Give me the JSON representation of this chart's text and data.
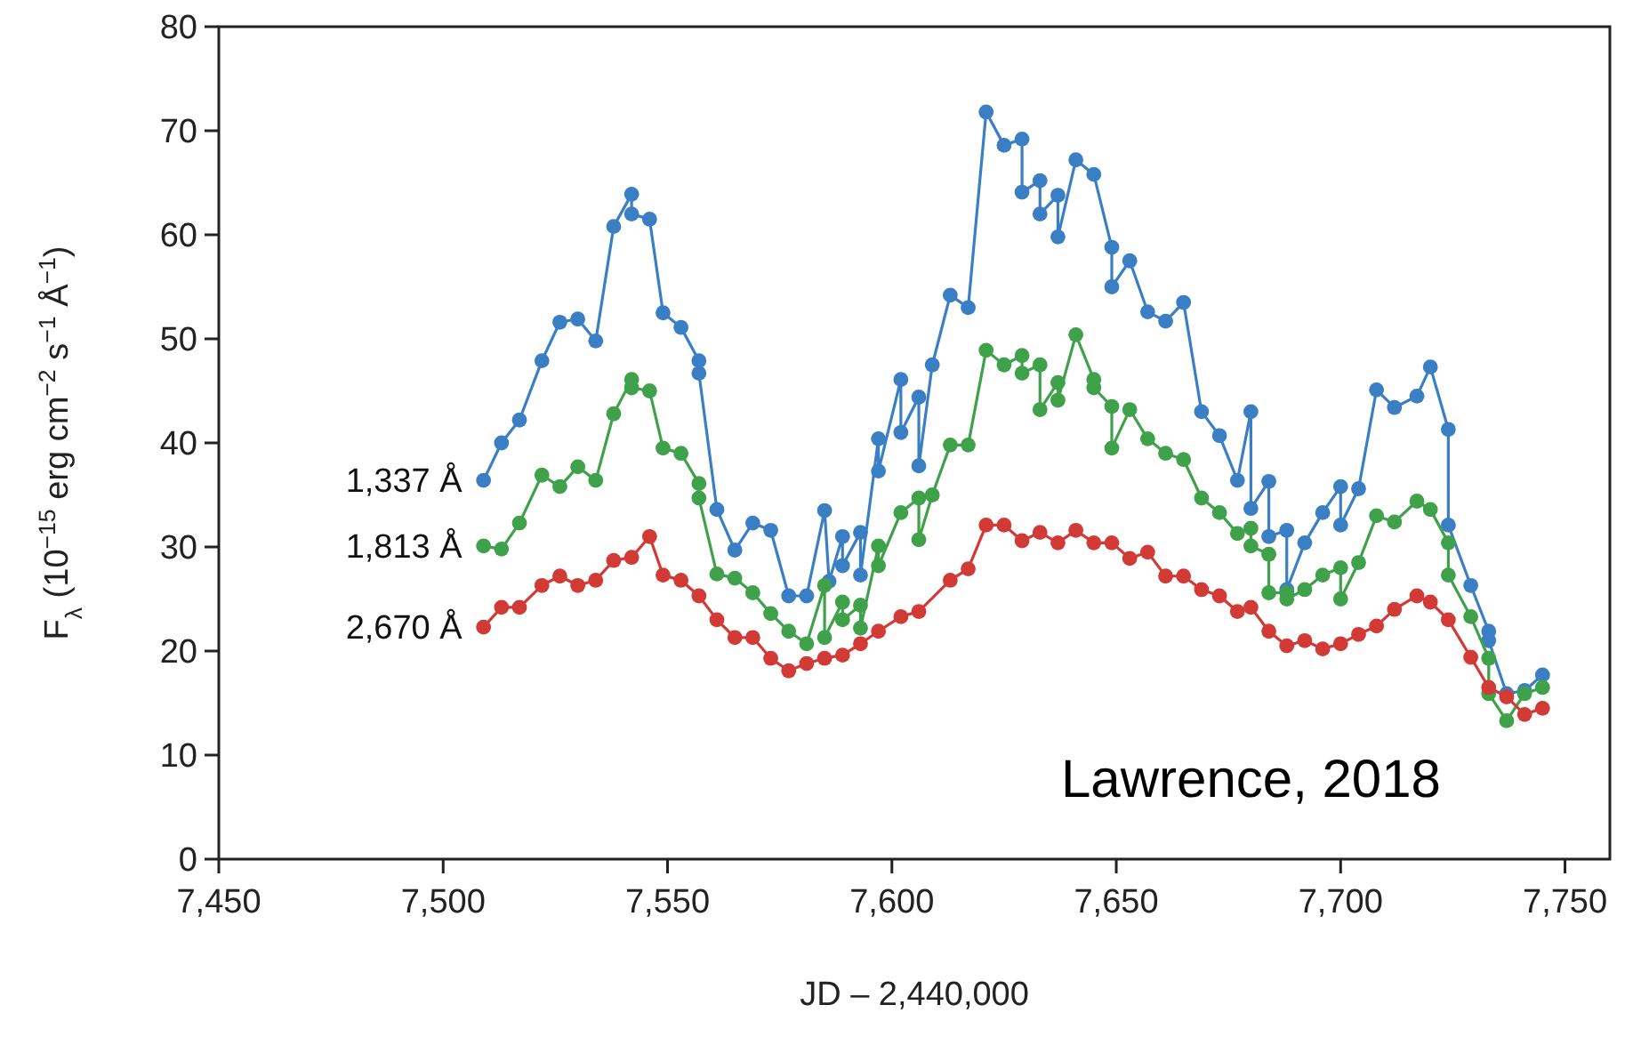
{
  "chart_data": {
    "type": "line",
    "xlabel": "JD – 2,440,000",
    "ylabel": "F$_{λ}$ (10$^{−15}$ erg cm$^{−2}$ s$^{−1}$ Å$^{−1}$)",
    "xlim": [
      7450,
      7760
    ],
    "xticks": [
      {
        "value": 7450,
        "label": "7,450"
      },
      {
        "value": 7500,
        "label": "7,500"
      },
      {
        "value": 7550,
        "label": "7,550"
      },
      {
        "value": 7600,
        "label": "7,600"
      },
      {
        "value": 7650,
        "label": "7,650"
      },
      {
        "value": 7700,
        "label": "7,700"
      },
      {
        "value": 7750,
        "label": "7,750"
      }
    ],
    "ylim": [
      0,
      80
    ],
    "yticks": [
      0,
      10,
      20,
      30,
      40,
      50,
      60,
      70,
      80
    ],
    "marker": "circle",
    "line_style": "solid",
    "grid": false,
    "annotations": [
      "Lawrence, 2018"
    ],
    "series": [
      {
        "name": "1,337 Å",
        "color": "#3a7fc4",
        "x": [
          7509,
          7513,
          7517,
          7522,
          7526,
          7530,
          7534,
          7538,
          7542,
          7542,
          7546,
          7549,
          7553,
          7557,
          7557,
          7561,
          7565,
          7569,
          7573,
          7577,
          7581,
          7585,
          7586,
          7589,
          7589,
          7593,
          7593,
          7597,
          7597,
          7602,
          7602,
          7606,
          7606,
          7609,
          7613,
          7617,
          7621,
          7625,
          7629,
          7629,
          7633,
          7633,
          7637,
          7637,
          7641,
          7645,
          7649,
          7649,
          7653,
          7657,
          7661,
          7665,
          7669,
          7673,
          7677,
          7680,
          7680,
          7684,
          7684,
          7688,
          7688,
          7692,
          7696,
          7700,
          7700,
          7704,
          7708,
          7712,
          7717,
          7720,
          7724,
          7724,
          7729,
          7733,
          7733,
          7737,
          7741,
          7745
        ],
        "values": [
          36.4,
          40.0,
          42.2,
          47.9,
          51.6,
          51.9,
          49.8,
          60.8,
          63.9,
          62.0,
          61.5,
          52.5,
          51.1,
          47.9,
          46.7,
          33.6,
          29.7,
          32.3,
          31.6,
          25.3,
          25.3,
          33.5,
          26.7,
          31.0,
          28.2,
          31.4,
          27.3,
          40.4,
          37.3,
          46.1,
          41.0,
          44.4,
          37.8,
          47.5,
          54.2,
          53.0,
          71.8,
          68.6,
          69.2,
          64.1,
          65.2,
          62.0,
          63.8,
          59.8,
          67.2,
          65.8,
          58.8,
          55.0,
          57.5,
          52.6,
          51.7,
          53.5,
          43.0,
          40.7,
          36.4,
          43.0,
          33.7,
          36.3,
          31.0,
          31.6,
          25.9,
          30.4,
          33.3,
          35.8,
          32.1,
          35.6,
          45.1,
          43.4,
          44.5,
          47.3,
          41.3,
          32.1,
          26.3,
          21.9,
          21.0,
          15.9,
          16.2,
          17.7
        ]
      },
      {
        "name": "1,813 Å",
        "color": "#3fa14a",
        "x": [
          7509,
          7513,
          7517,
          7522,
          7526,
          7530,
          7534,
          7538,
          7542,
          7542,
          7546,
          7549,
          7553,
          7557,
          7557,
          7561,
          7565,
          7569,
          7573,
          7577,
          7581,
          7585,
          7585,
          7589,
          7589,
          7593,
          7593,
          7597,
          7597,
          7602,
          7606,
          7606,
          7609,
          7613,
          7617,
          7621,
          7625,
          7629,
          7629,
          7633,
          7633,
          7637,
          7637,
          7641,
          7645,
          7645,
          7649,
          7649,
          7653,
          7657,
          7661,
          7665,
          7669,
          7673,
          7677,
          7680,
          7680,
          7684,
          7684,
          7688,
          7688,
          7692,
          7696,
          7700,
          7700,
          7704,
          7708,
          7712,
          7717,
          7720,
          7724,
          7724,
          7729,
          7733,
          7733,
          7737,
          7741,
          7745
        ],
        "values": [
          30.1,
          29.8,
          32.3,
          36.9,
          35.8,
          37.7,
          36.4,
          42.8,
          46.1,
          45.3,
          45.0,
          39.5,
          39.0,
          36.1,
          34.7,
          27.4,
          27.0,
          25.6,
          23.6,
          21.9,
          20.7,
          26.3,
          21.3,
          24.7,
          23.0,
          24.4,
          22.2,
          30.1,
          28.2,
          33.3,
          34.7,
          30.7,
          35.0,
          39.8,
          39.8,
          48.9,
          47.5,
          48.4,
          46.7,
          47.5,
          43.2,
          45.8,
          44.1,
          50.4,
          46.1,
          45.3,
          43.5,
          39.5,
          43.2,
          40.4,
          39.0,
          38.4,
          34.7,
          33.3,
          31.3,
          31.8,
          30.1,
          29.3,
          25.6,
          25.6,
          25.0,
          25.9,
          27.3,
          28.0,
          25.0,
          28.5,
          33.0,
          32.4,
          34.4,
          33.6,
          30.4,
          27.3,
          23.3,
          19.3,
          15.9,
          13.3,
          15.9,
          16.5
        ]
      },
      {
        "name": "2,670 Å",
        "color": "#d23a35",
        "x": [
          7509,
          7513,
          7517,
          7522,
          7526,
          7530,
          7534,
          7538,
          7542,
          7546,
          7549,
          7553,
          7557,
          7561,
          7565,
          7569,
          7573,
          7577,
          7581,
          7585,
          7589,
          7593,
          7597,
          7602,
          7606,
          7613,
          7617,
          7621,
          7625,
          7629,
          7633,
          7637,
          7641,
          7645,
          7649,
          7653,
          7657,
          7661,
          7665,
          7669,
          7673,
          7677,
          7680,
          7684,
          7688,
          7692,
          7696,
          7700,
          7704,
          7708,
          7712,
          7717,
          7720,
          7724,
          7729,
          7733,
          7737,
          7741,
          7745
        ],
        "values": [
          22.3,
          24.2,
          24.2,
          26.3,
          27.2,
          26.3,
          26.8,
          28.7,
          29.0,
          31.0,
          27.3,
          26.8,
          25.3,
          23.0,
          21.3,
          21.3,
          19.3,
          18.1,
          18.8,
          19.3,
          19.6,
          20.7,
          21.9,
          23.3,
          23.8,
          26.8,
          27.9,
          32.1,
          32.1,
          30.6,
          31.4,
          30.4,
          31.6,
          30.4,
          30.4,
          28.9,
          29.5,
          27.2,
          27.2,
          25.9,
          25.3,
          23.8,
          24.2,
          21.9,
          20.5,
          21.0,
          20.2,
          20.7,
          21.6,
          22.4,
          24.0,
          25.3,
          24.7,
          23.0,
          19.4,
          16.5,
          15.6,
          13.9,
          14.5
        ]
      }
    ]
  }
}
